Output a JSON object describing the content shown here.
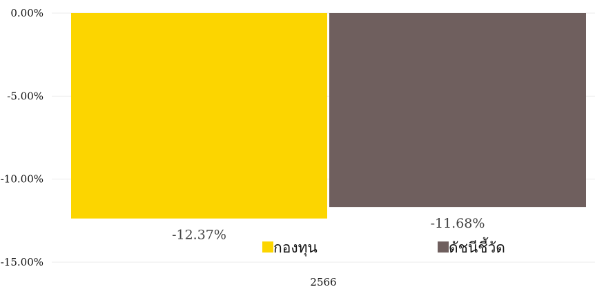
{
  "chart_data": {
    "type": "bar",
    "categories": [
      "2566"
    ],
    "series": [
      {
        "name": "กองทุน",
        "values": [
          -12.37
        ],
        "color": "#fcd500",
        "label": "-12.37%"
      },
      {
        "name": "ดัชนีชี้วัด",
        "values": [
          -11.68
        ],
        "color": "#6f5f5e",
        "label": "-11.68%"
      }
    ],
    "y_ticks": [
      0,
      -5,
      -10,
      -15
    ],
    "y_tick_labels": [
      "0.00%",
      "-5.00%",
      "-10.00%",
      "-15.00%"
    ],
    "ylim": [
      -15,
      0
    ],
    "grid": true,
    "legend_position": "bottom"
  }
}
